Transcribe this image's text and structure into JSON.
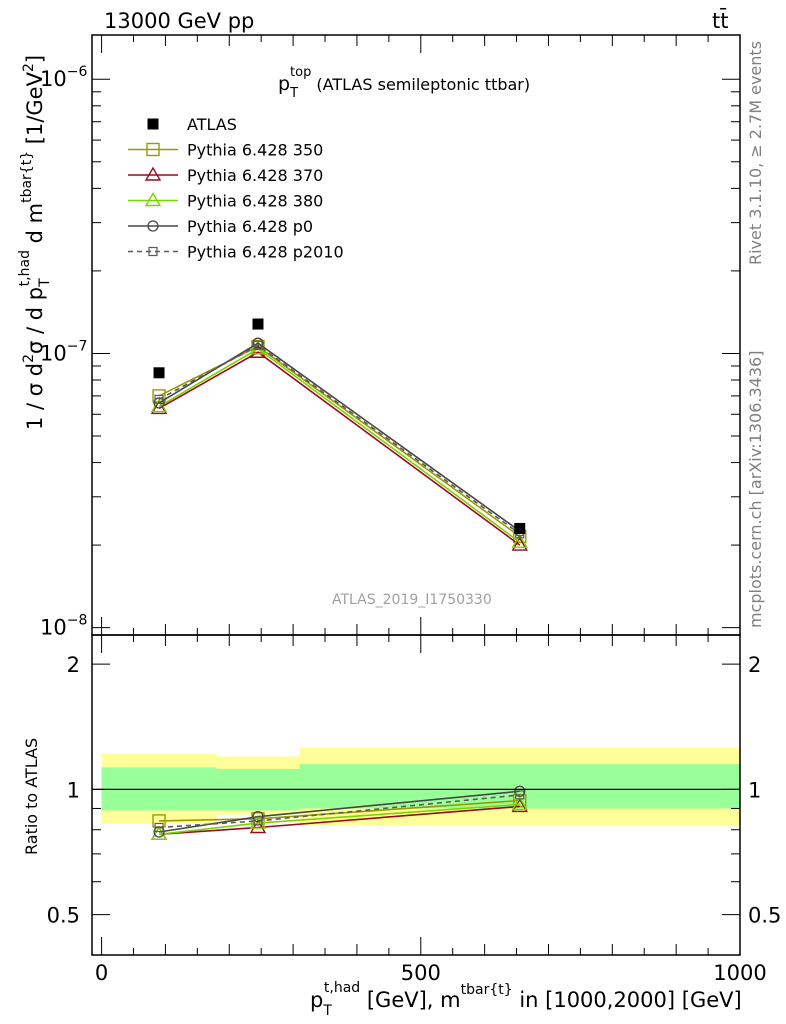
{
  "header": {
    "energy_label": "13000 GeV pp",
    "process_label": "tt̄"
  },
  "side_text": {
    "rivet": "Rivet 3.1.10, ≥ 2.7M events",
    "mcplots": "mcplots.cern.ch [arXiv:1306.3436]"
  },
  "plot_title": {
    "main": "p",
    "sub": "T",
    "sup": "top",
    "rest": " (ATLAS semileptonic ttbar)"
  },
  "watermark": "ATLAS_2019_I1750330",
  "y_axis_main": {
    "part1": "1 / σ d",
    "sup2": "2",
    "part2": "σ / d p",
    "subT": "T",
    "suphad": "t,had",
    "part3": " d m",
    "suptbar": "tbar{t}",
    "part4": " [1/GeV",
    "supGeV": "2",
    "part5": "]"
  },
  "y_axis_ratio": "Ratio to ATLAS",
  "x_axis": {
    "p": "p",
    "subT": "T",
    "suphad": "t,had",
    "mid": " [GeV], m",
    "suptbar": "tbar{t}",
    "rest": " in [1000,2000] [GeV]"
  },
  "main_ticks": [
    {
      "base": "10",
      "exp": "−6",
      "value": 1e-06
    },
    {
      "base": "10",
      "exp": "−7",
      "value": 1e-07
    },
    {
      "base": "10",
      "exp": "−8",
      "value": 1e-08
    }
  ],
  "ratio_ticks": [
    {
      "label": "2",
      "value": 2
    },
    {
      "label": "1",
      "value": 1
    },
    {
      "label": "0.5",
      "value": 0.5
    }
  ],
  "x_ticks": [
    {
      "label": "0",
      "value": 0
    },
    {
      "label": "500",
      "value": 500
    },
    {
      "label": "1000",
      "value": 1000
    }
  ],
  "chart_data": {
    "type": "line",
    "xlim": [
      -15,
      1000
    ],
    "ylim_main": [
      9.4e-09,
      1.45e-06
    ],
    "log_y_main": true,
    "ylim_ratio": [
      0.4,
      2.35
    ],
    "log_y_ratio": true,
    "x": [
      90,
      245,
      655
    ],
    "bins": [
      [
        0,
        180
      ],
      [
        180,
        310
      ],
      [
        310,
        1000
      ]
    ],
    "legend_position": "top-left",
    "data": {
      "name": "ATLAS",
      "values": [
        8.5e-08,
        1.28e-07,
        2.3e-08
      ]
    },
    "series": [
      {
        "name": "Pythia 6.428 350",
        "color": "#999a00",
        "marker": "square-open",
        "dash": "solid",
        "values": [
          7e-08,
          1.06e-07,
          2.15e-08
        ],
        "ratio": [
          0.84,
          0.85,
          0.94
        ]
      },
      {
        "name": "Pythia 6.428 370",
        "color": "#9b0a1e",
        "marker": "triangle-open",
        "dash": "solid",
        "values": [
          6.3e-08,
          1.01e-07,
          2e-08
        ],
        "ratio": [
          0.78,
          0.81,
          0.91
        ]
      },
      {
        "name": "Pythia 6.428 380",
        "color": "#7ad400",
        "marker": "triangle-open",
        "dash": "solid",
        "values": [
          6.4e-08,
          1.04e-07,
          2.05e-08
        ],
        "ratio": [
          0.78,
          0.83,
          0.92
        ]
      },
      {
        "name": "Pythia 6.428 p0",
        "color": "#474747",
        "marker": "circle-open",
        "dash": "solid",
        "values": [
          6.6e-08,
          1.09e-07,
          2.25e-08
        ],
        "ratio": [
          0.79,
          0.86,
          0.99
        ]
      },
      {
        "name": "Pythia 6.428 p2010",
        "color": "#5b5b5b",
        "marker": "square-open-small",
        "dash": "dashed",
        "values": [
          6.8e-08,
          1.07e-07,
          2.2e-08
        ],
        "ratio": [
          0.81,
          0.84,
          0.97
        ]
      }
    ],
    "uncertainty_bands": {
      "inner_green": [
        [
          0.89,
          1.13
        ],
        [
          0.89,
          1.12
        ],
        [
          0.9,
          1.15
        ]
      ],
      "outer_yellow": [
        [
          0.83,
          1.22
        ],
        [
          0.87,
          1.2
        ],
        [
          0.82,
          1.26
        ]
      ]
    },
    "colors": {
      "band_inner": "#99ff99",
      "band_outer": "#ffff99"
    }
  }
}
